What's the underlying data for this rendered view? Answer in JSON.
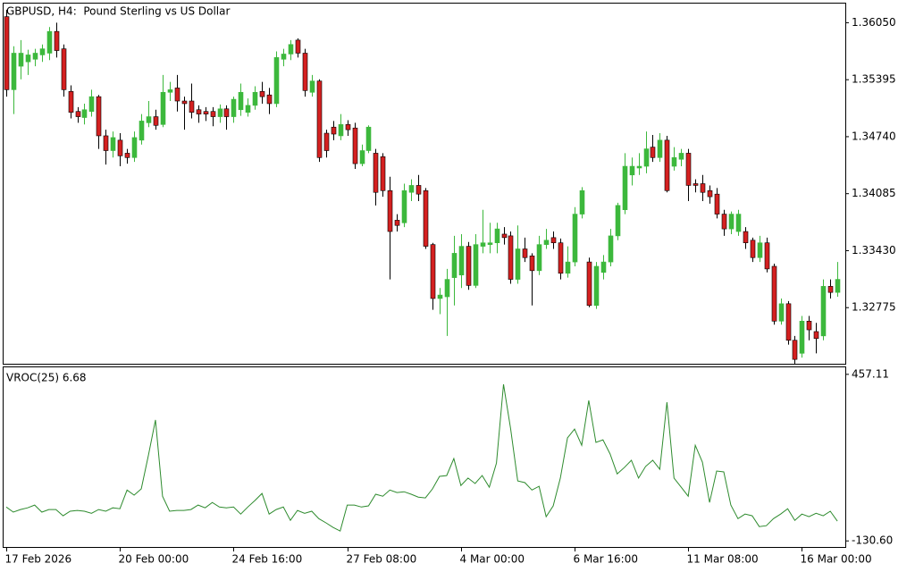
{
  "chart_data": [
    {
      "type": "candlestick",
      "title": "GBPUSD, H4:  Pound Sterling vs US Dollar",
      "categories": [
        "17 Feb 2026",
        null,
        null,
        null,
        null,
        null,
        null,
        null,
        null,
        null,
        null,
        null,
        null,
        null,
        null,
        null,
        "20 Feb 00:00",
        null,
        null,
        null,
        null,
        null,
        null,
        null,
        null,
        null,
        null,
        null,
        null,
        null,
        null,
        null,
        "24 Feb 16:00",
        null,
        null,
        null,
        null,
        null,
        null,
        null,
        null,
        null,
        null,
        null,
        null,
        null,
        null,
        null,
        "27 Feb 08:00",
        null,
        null,
        null,
        null,
        null,
        null,
        null,
        null,
        null,
        null,
        null,
        null,
        null,
        null,
        null,
        "4 Mar 00:00",
        null,
        null,
        null,
        null,
        null,
        null,
        null,
        null,
        null,
        null,
        null,
        null,
        null,
        null,
        null,
        "6 Mar 16:00",
        null,
        null,
        null,
        null,
        null,
        null,
        null,
        null,
        null,
        null,
        null,
        null,
        null,
        null,
        null,
        "11 Mar 08:00",
        null,
        null,
        null,
        null,
        null,
        null,
        null,
        null,
        null,
        null,
        null,
        null,
        null,
        null,
        null,
        "16 Mar 00:00",
        null,
        null,
        null,
        null,
        null
      ],
      "open": [
        1.3612,
        1.3528,
        1.3555,
        1.356,
        1.3563,
        1.3568,
        1.357,
        1.3595,
        1.3575,
        1.3526,
        1.3503,
        1.3496,
        1.3503,
        1.352,
        1.3475,
        1.3458,
        1.347,
        1.3455,
        1.345,
        1.347,
        1.349,
        1.3497,
        1.3488,
        1.3525,
        1.353,
        1.3515,
        1.3515,
        1.3505,
        1.3503,
        1.3503,
        1.3497,
        1.3506,
        1.3497,
        1.3505,
        1.3502,
        1.351,
        1.3526,
        1.3522,
        1.3512,
        1.3563,
        1.3569,
        1.3585,
        1.357,
        1.3525,
        1.3538,
        1.3478,
        1.3485,
        1.3475,
        1.3488,
        1.3484,
        1.3443,
        1.3458,
        1.3455,
        1.3451,
        1.3412,
        1.3378,
        1.3375,
        1.341,
        1.3418,
        1.3412,
        1.335,
        1.3288,
        1.329,
        1.3312,
        1.3315,
        1.3348,
        1.3303,
        1.3348,
        1.335,
        1.3352,
        1.3362,
        1.336,
        1.331,
        1.3345,
        1.3337,
        1.332,
        1.335,
        1.3358,
        1.3352,
        1.3317,
        1.333,
        1.3385,
        1.333,
        1.328,
        1.3318,
        1.333,
        1.336,
        1.339,
        1.343,
        1.3438,
        1.344,
        1.3462,
        1.345,
        1.347,
        1.344,
        1.3448,
        1.3455,
        1.342,
        1.342,
        1.3412,
        1.3408,
        1.3385,
        1.3368,
        1.3365,
        1.3365,
        1.3355,
        1.3335,
        1.3352,
        1.3325,
        1.3262,
        1.3282,
        1.324,
        1.3225,
        1.3262,
        1.325,
        1.3245,
        1.3302,
        1.3295
      ],
      "high": [
        1.362,
        1.3578,
        1.3585,
        1.3574,
        1.3575,
        1.358,
        1.36,
        1.3605,
        1.358,
        1.3533,
        1.3508,
        1.3512,
        1.3528,
        1.3522,
        1.3482,
        1.348,
        1.3478,
        1.346,
        1.348,
        1.35,
        1.3515,
        1.3505,
        1.3545,
        1.3537,
        1.3545,
        1.352,
        1.3535,
        1.351,
        1.3508,
        1.3508,
        1.3511,
        1.351,
        1.352,
        1.3535,
        1.3518,
        1.3532,
        1.3537,
        1.353,
        1.3572,
        1.3575,
        1.3585,
        1.3587,
        1.3575,
        1.3545,
        1.354,
        1.3482,
        1.3492,
        1.35,
        1.3493,
        1.349,
        1.3465,
        1.3487,
        1.346,
        1.3455,
        1.3428,
        1.3385,
        1.342,
        1.3425,
        1.343,
        1.3415,
        1.3352,
        1.33,
        1.3322,
        1.336,
        1.3362,
        1.3353,
        1.3362,
        1.339,
        1.3375,
        1.3375,
        1.337,
        1.3365,
        1.3372,
        1.3358,
        1.334,
        1.336,
        1.3368,
        1.3365,
        1.3357,
        1.3348,
        1.3393,
        1.3416,
        1.3335,
        1.333,
        1.3338,
        1.3368,
        1.3398,
        1.3455,
        1.345,
        1.3455,
        1.348,
        1.3476,
        1.3478,
        1.3475,
        1.3462,
        1.346,
        1.346,
        1.3425,
        1.343,
        1.3418,
        1.3415,
        1.339,
        1.3388,
        1.339,
        1.337,
        1.3358,
        1.336,
        1.3358,
        1.3328,
        1.3288,
        1.3285,
        1.3245,
        1.3268,
        1.3268,
        1.326,
        1.331,
        1.331,
        1.333
      ],
      "low": [
        1.352,
        1.35,
        1.354,
        1.3545,
        1.3555,
        1.356,
        1.3562,
        1.3565,
        1.352,
        1.3495,
        1.349,
        1.3488,
        1.3497,
        1.346,
        1.3442,
        1.345,
        1.344,
        1.3443,
        1.3445,
        1.3465,
        1.3485,
        1.3482,
        1.3485,
        1.3515,
        1.3503,
        1.3482,
        1.3495,
        1.349,
        1.3492,
        1.3486,
        1.349,
        1.3482,
        1.349,
        1.3498,
        1.3497,
        1.3505,
        1.3512,
        1.35,
        1.3508,
        1.3555,
        1.3562,
        1.3565,
        1.352,
        1.352,
        1.3445,
        1.345,
        1.347,
        1.347,
        1.3475,
        1.3437,
        1.344,
        1.3455,
        1.3395,
        1.3405,
        1.331,
        1.3365,
        1.337,
        1.34,
        1.34,
        1.3345,
        1.3275,
        1.327,
        1.3245,
        1.328,
        1.33,
        1.3298,
        1.33,
        1.334,
        1.334,
        1.334,
        1.335,
        1.3305,
        1.3305,
        1.333,
        1.328,
        1.3315,
        1.3345,
        1.3345,
        1.331,
        1.3312,
        1.3325,
        1.338,
        1.3278,
        1.3276,
        1.331,
        1.3325,
        1.3355,
        1.3385,
        1.3418,
        1.343,
        1.3432,
        1.3445,
        1.3445,
        1.341,
        1.3435,
        1.344,
        1.34,
        1.341,
        1.34,
        1.3397,
        1.338,
        1.336,
        1.3362,
        1.336,
        1.3345,
        1.333,
        1.333,
        1.3318,
        1.3258,
        1.3258,
        1.3235,
        1.3212,
        1.322,
        1.324,
        1.3225,
        1.324,
        1.3288,
        1.329
      ],
      "close": [
        1.3528,
        1.357,
        1.357,
        1.3568,
        1.357,
        1.3575,
        1.3595,
        1.3573,
        1.3528,
        1.3502,
        1.3497,
        1.3505,
        1.352,
        1.3475,
        1.3458,
        1.3473,
        1.3452,
        1.345,
        1.3473,
        1.3492,
        1.3497,
        1.3487,
        1.3525,
        1.3528,
        1.3515,
        1.3512,
        1.3502,
        1.35,
        1.35,
        1.3497,
        1.3506,
        1.3497,
        1.3517,
        1.3525,
        1.351,
        1.3525,
        1.352,
        1.3512,
        1.3565,
        1.3569,
        1.358,
        1.357,
        1.3527,
        1.3538,
        1.345,
        1.3458,
        1.3477,
        1.3488,
        1.3482,
        1.3443,
        1.3458,
        1.3485,
        1.341,
        1.3412,
        1.3365,
        1.3372,
        1.3412,
        1.3418,
        1.3408,
        1.3348,
        1.3288,
        1.3292,
        1.331,
        1.334,
        1.3348,
        1.3303,
        1.335,
        1.3352,
        1.3352,
        1.3368,
        1.3358,
        1.331,
        1.3345,
        1.3335,
        1.332,
        1.335,
        1.3355,
        1.3352,
        1.3317,
        1.333,
        1.3385,
        1.3412,
        1.328,
        1.3325,
        1.333,
        1.336,
        1.3395,
        1.344,
        1.344,
        1.344,
        1.346,
        1.345,
        1.347,
        1.3412,
        1.345,
        1.3455,
        1.3418,
        1.3418,
        1.341,
        1.3405,
        1.3385,
        1.3368,
        1.3385,
        1.3385,
        1.3352,
        1.3335,
        1.3352,
        1.3322,
        1.3262,
        1.3282,
        1.324,
        1.3218,
        1.3262,
        1.3252,
        1.3242,
        1.3302,
        1.3295,
        1.331
      ],
      "up_color": "#3cb83c",
      "down_color": "#d42020",
      "ylim": [
        1.3213,
        1.3627
      ],
      "yticks": [
        {
          "value": 1.3605,
          "label": "1.36050"
        },
        1.35395,
        {
          "value": 1.3474,
          "label": "1.34740"
        },
        1.34085,
        {
          "value": 1.3343,
          "label": "1.33430"
        },
        1.32775
      ]
    },
    {
      "type": "line",
      "title": "VROC(25) 6.68",
      "color": "#2e8b2e",
      "values": [
        -11,
        -29,
        -20,
        -14,
        -4,
        -29,
        -20,
        -20,
        -42,
        -26,
        -23,
        -26,
        -33,
        -20,
        -26,
        -14,
        -17,
        49,
        31,
        53,
        170,
        296,
        27,
        -26,
        -23,
        -23,
        -20,
        -4,
        -14,
        5,
        -11,
        -14,
        -11,
        -36,
        -11,
        12,
        37,
        -36,
        -20,
        -11,
        -58,
        -23,
        -33,
        -26,
        -52,
        -67,
        -83,
        -96,
        -4,
        -4,
        -11,
        -7,
        34,
        27,
        49,
        40,
        43,
        34,
        24,
        21,
        53,
        97,
        100,
        160,
        65,
        91,
        72,
        100,
        59,
        144,
        422,
        264,
        81,
        75,
        49,
        62,
        -45,
        -7,
        91,
        233,
        264,
        207,
        365,
        217,
        226,
        176,
        106,
        128,
        154,
        91,
        132,
        154,
        122,
        359,
        91,
        59,
        27,
        207,
        147,
        5,
        116,
        113,
        -4,
        -52,
        -36,
        -42,
        -80,
        -77,
        -52,
        -36,
        -17,
        -58,
        -36,
        -45,
        -33,
        -42,
        -26,
        -61
      ],
      "ylim": [
        -152,
        485
      ],
      "yticks": [
        457.11,
        {
          "value": -130.6,
          "label": "-130.60"
        }
      ]
    }
  ]
}
